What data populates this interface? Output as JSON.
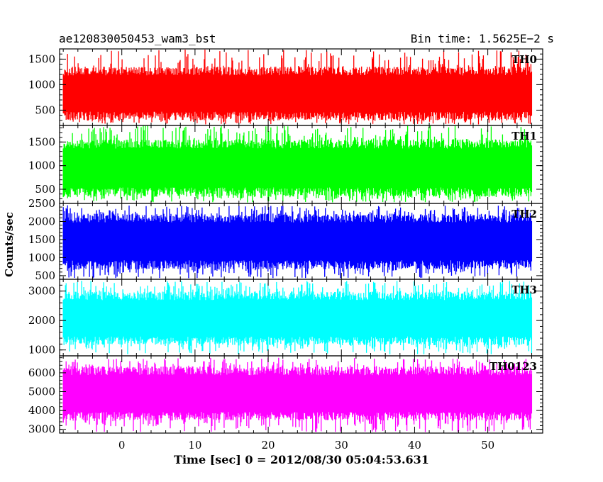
{
  "header": {
    "title": "ae120830050453_wam3_bst",
    "bin_time": "Bin time: 1.5625E−2 s"
  },
  "chart_data": {
    "type": "line",
    "title": "ae120830050453_wam3_bst",
    "xlabel": "Time [sec] 0 = 2012/08/30 05:04:53.631",
    "ylabel": "Counts/sec",
    "xlim": [
      -8.5,
      57.5
    ],
    "x_range": [
      -8.0,
      56.0
    ],
    "bin_time": 0.015625,
    "x_ticks": [
      0,
      10,
      20,
      30,
      40,
      50
    ],
    "panels": [
      {
        "name": "TH0",
        "color": "#ff0000",
        "ylim": [
          200,
          1700
        ],
        "y_ticks": [
          500,
          1000,
          1500
        ],
        "typical_range": [
          350,
          1300
        ],
        "spike_range": [
          220,
          1700
        ]
      },
      {
        "name": "TH1",
        "color": "#00ff00",
        "ylim": [
          200,
          1850
        ],
        "y_ticks": [
          500,
          1000,
          1500
        ],
        "typical_range": [
          400,
          1500
        ],
        "spike_range": [
          220,
          1850
        ]
      },
      {
        "name": "TH2",
        "color": "#0000ff",
        "ylim": [
          400,
          2500
        ],
        "y_ticks": [
          500,
          1000,
          1500,
          2000,
          2500
        ],
        "typical_range": [
          750,
          2150
        ],
        "spike_range": [
          430,
          2450
        ]
      },
      {
        "name": "TH3",
        "color": "#00ffff",
        "ylim": [
          800,
          3400
        ],
        "y_ticks": [
          1000,
          2000,
          3000
        ],
        "typical_range": [
          1250,
          2900
        ],
        "spike_range": [
          850,
          3350
        ]
      },
      {
        "name": "TH0123",
        "color": "#ff00ff",
        "ylim": [
          2800,
          6900
        ],
        "y_ticks": [
          3000,
          4000,
          5000,
          6000
        ],
        "typical_range": [
          3600,
          6200
        ],
        "spike_range": [
          2850,
          6800
        ]
      }
    ]
  }
}
